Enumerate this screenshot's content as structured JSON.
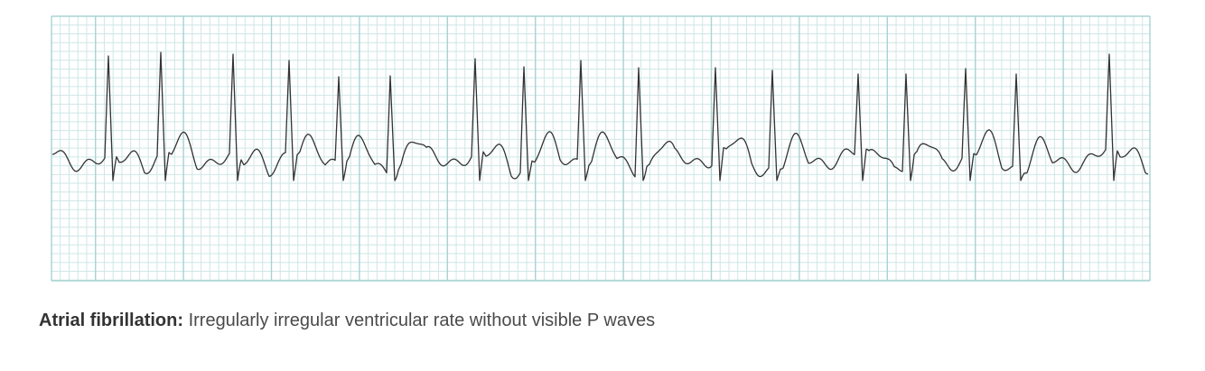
{
  "figure": {
    "caption_label": "Atrial fibrillation:",
    "caption_text": "Irregularly irregular ventricular rate without visible P waves"
  }
}
